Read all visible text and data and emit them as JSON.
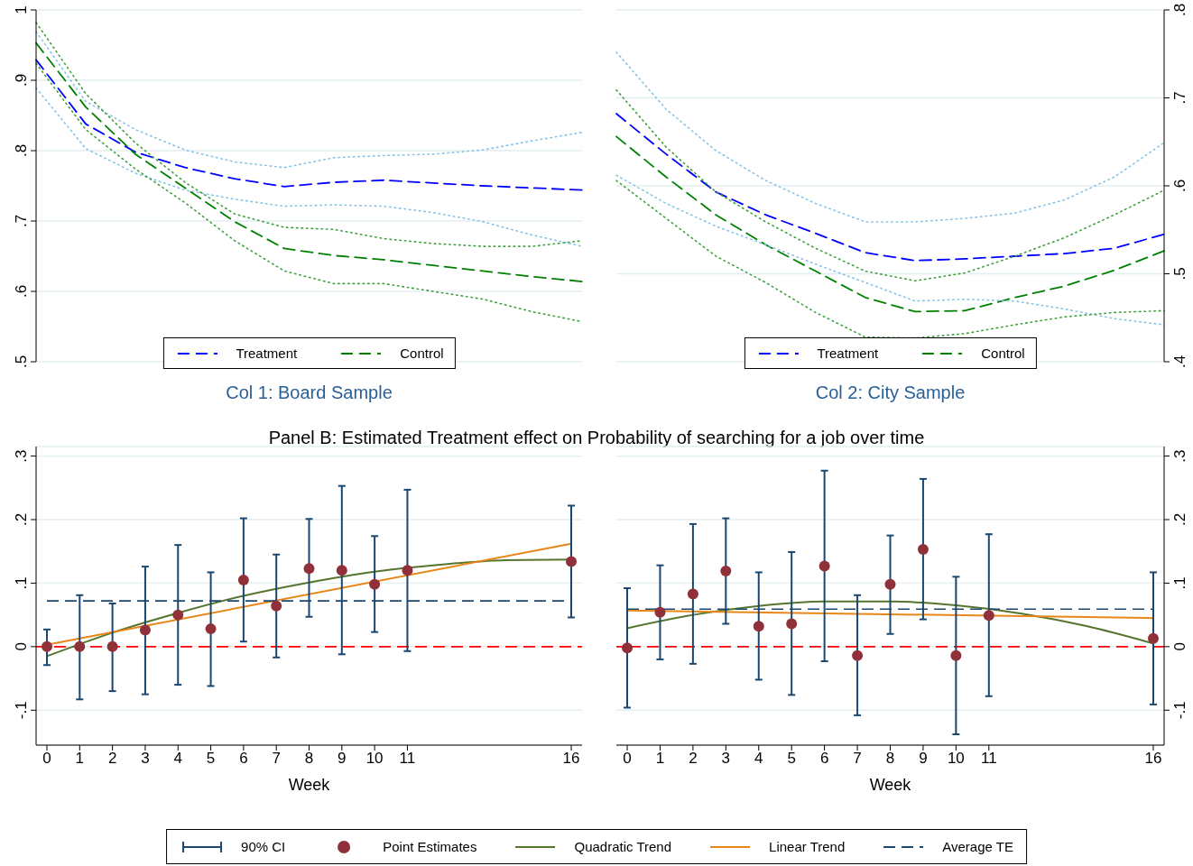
{
  "chart_data": [
    {
      "type": "line",
      "title": "Col 1: Board Sample",
      "categories": [
        null,
        null,
        null,
        null,
        null,
        null,
        null,
        null,
        null,
        null,
        null,
        null
      ],
      "ylim": [
        0.5,
        1
      ],
      "yticks": [
        {
          "value": 0.5,
          "label": ".5"
        },
        {
          "value": 0.6,
          "label": ".6"
        },
        {
          "value": 0.7,
          "label": ".7"
        },
        {
          "value": 0.8,
          "label": ".8"
        },
        {
          "value": 0.9,
          "label": ".9"
        },
        1
      ],
      "grid": "y",
      "legend": "bottom",
      "series": [
        {
          "name": "Treatment",
          "color": "#0000ff",
          "line_style": "dashed",
          "values": [
            0.929,
            0.838,
            0.798,
            0.776,
            0.76,
            0.749,
            0.755,
            0.758,
            0.754,
            0.75,
            0.747,
            0.744
          ]
        },
        {
          "name": "Control",
          "color": "#008000",
          "line_style": "dashed",
          "values": [
            0.953,
            0.862,
            0.795,
            0.747,
            0.699,
            0.661,
            0.651,
            0.645,
            0.637,
            0.629,
            0.621,
            0.614
          ]
        },
        {
          "color": "#87c3e6",
          "line_style": "dotted",
          "values": [
            0.889,
            0.803,
            0.768,
            0.744,
            0.731,
            0.721,
            0.723,
            0.721,
            0.712,
            0.699,
            0.68,
            0.664
          ]
        },
        {
          "color": "#87c3e6",
          "line_style": "dotted",
          "values": [
            0.969,
            0.87,
            0.83,
            0.801,
            0.784,
            0.776,
            0.79,
            0.793,
            0.795,
            0.801,
            0.814,
            0.826
          ]
        },
        {
          "color": "#3fa03f",
          "line_style": "dotted",
          "values": [
            0.924,
            0.83,
            0.774,
            0.726,
            0.672,
            0.629,
            0.611,
            0.611,
            0.6,
            0.589,
            0.571,
            0.557
          ]
        },
        {
          "color": "#3fa03f",
          "line_style": "dotted",
          "values": [
            0.982,
            0.881,
            0.811,
            0.755,
            0.71,
            0.691,
            0.688,
            0.675,
            0.668,
            0.664,
            0.664,
            0.672
          ]
        }
      ]
    },
    {
      "type": "line",
      "title": "Col 2: City Sample",
      "categories": [
        null,
        null,
        null,
        null,
        null,
        null,
        null,
        null,
        null,
        null,
        null,
        null
      ],
      "ylim": [
        0.4,
        0.8
      ],
      "yticks": [
        {
          "value": 0.4,
          "label": ".4"
        },
        {
          "value": 0.5,
          "label": ".5"
        },
        {
          "value": 0.6,
          "label": ".6"
        },
        {
          "value": 0.7,
          "label": ".7"
        },
        {
          "value": 0.8,
          "label": ".8"
        }
      ],
      "grid": "y",
      "legend": "bottom",
      "series": [
        {
          "name": "Treatment",
          "color": "#0000ff",
          "line_style": "dashed",
          "values": [
            0.682,
            0.636,
            0.593,
            0.567,
            0.546,
            0.524,
            0.515,
            0.517,
            0.52,
            0.523,
            0.529,
            0.545
          ]
        },
        {
          "name": "Control",
          "color": "#008000",
          "line_style": "dashed",
          "values": [
            0.656,
            0.61,
            0.567,
            0.533,
            0.503,
            0.473,
            0.457,
            0.458,
            0.473,
            0.486,
            0.504,
            0.526
          ]
        },
        {
          "color": "#87c3e6",
          "line_style": "dotted",
          "values": [
            0.612,
            0.58,
            0.554,
            0.533,
            0.511,
            0.49,
            0.469,
            0.471,
            0.469,
            0.46,
            0.449,
            0.442
          ]
        },
        {
          "color": "#87c3e6",
          "line_style": "dotted",
          "values": [
            0.752,
            0.687,
            0.64,
            0.606,
            0.58,
            0.559,
            0.559,
            0.563,
            0.569,
            0.584,
            0.61,
            0.649
          ]
        },
        {
          "color": "#3fa03f",
          "line_style": "dotted",
          "values": [
            0.606,
            0.563,
            0.52,
            0.49,
            0.456,
            0.428,
            0.427,
            0.432,
            0.442,
            0.451,
            0.456,
            0.458
          ]
        },
        {
          "color": "#3fa03f",
          "line_style": "dotted",
          "values": [
            0.709,
            0.644,
            0.593,
            0.559,
            0.529,
            0.503,
            0.492,
            0.501,
            0.52,
            0.541,
            0.567,
            0.595
          ]
        }
      ]
    },
    {
      "type": "scatter",
      "title": "Panel B: Estimated Treatment effect on Probability of searching for a job over time",
      "xlabel": "Week",
      "xlim": [
        -0.33,
        16.33
      ],
      "xticks": [
        0,
        1,
        2,
        3,
        4,
        5,
        6,
        7,
        8,
        9,
        10,
        11,
        16
      ],
      "ylim": [
        -0.155,
        0.315
      ],
      "yticks": [
        {
          "value": -0.1,
          "label": "-.1"
        },
        0,
        {
          "value": 0.1,
          "label": ".1"
        },
        {
          "value": 0.2,
          "label": ".2"
        },
        {
          "value": 0.3,
          "label": ".3"
        }
      ],
      "grid": "y",
      "legend": "bottom",
      "ref_lines": [
        {
          "axis": "y",
          "value": 0,
          "color": "#ff0000",
          "line_style": "dashed"
        }
      ],
      "annotations": [
        "90% CI"
      ],
      "series": [
        {
          "name": "Point Estimates",
          "type": "scatter",
          "marker": "circle",
          "color": "#903039",
          "x": [
            0,
            1,
            2,
            3,
            4,
            5,
            6,
            7,
            8,
            9,
            10,
            11,
            16
          ],
          "values": [
            0,
            0,
            0,
            0.026,
            0.05,
            0.028,
            0.105,
            0.064,
            0.123,
            0.12,
            0.098,
            0.12,
            0.134
          ],
          "errors": [
            [
              -0.029,
              0.027
            ],
            [
              -0.083,
              0.081
            ],
            [
              -0.07,
              0.068
            ],
            [
              -0.075,
              0.126
            ],
            [
              -0.06,
              0.16
            ],
            [
              -0.062,
              0.117
            ],
            [
              0.008,
              0.202
            ],
            [
              -0.017,
              0.145
            ],
            [
              0.047,
              0.201
            ],
            [
              -0.012,
              0.253
            ],
            [
              0.023,
              0.174
            ],
            [
              -0.007,
              0.247
            ],
            [
              0.046,
              0.222
            ]
          ]
        },
        {
          "name": "Quadratic Trend",
          "type": "line",
          "color": "#55752f",
          "x": [
            0,
            2,
            4,
            6,
            8,
            10,
            12,
            14,
            16
          ],
          "values": [
            -0.015,
            0.022,
            0.053,
            0.08,
            0.101,
            0.118,
            0.129,
            0.136,
            0.137
          ]
        },
        {
          "name": "Linear Trend",
          "type": "line",
          "color": "#e8861a",
          "x": [
            0,
            16
          ],
          "values": [
            0.003,
            0.162
          ]
        },
        {
          "name": "Average TE",
          "type": "line",
          "line_style": "dashed",
          "color": "#1a476f",
          "x": [
            0,
            16
          ],
          "values": [
            0.072,
            0.072
          ]
        }
      ]
    },
    {
      "type": "scatter",
      "xlabel": "Week",
      "xlim": [
        -0.33,
        16.33
      ],
      "xticks": [
        0,
        1,
        2,
        3,
        4,
        5,
        6,
        7,
        8,
        9,
        10,
        11,
        16
      ],
      "y2lim": [
        -0.155,
        0.315
      ],
      "y2ticks": [
        {
          "value": -0.1,
          "label": "-.1"
        },
        0,
        {
          "value": 0.1,
          "label": ".1"
        },
        {
          "value": 0.2,
          "label": ".2"
        },
        {
          "value": 0.3,
          "label": ".3"
        }
      ],
      "grid": "y",
      "ref_lines": [
        {
          "axis": "y2",
          "value": 0,
          "color": "#ff0000",
          "line_style": "dashed"
        }
      ],
      "series": [
        {
          "type": "scatter",
          "marker": "circle",
          "axis": "y2",
          "color": "#903039",
          "x": [
            0,
            1,
            2,
            3,
            4,
            5,
            6,
            7,
            8,
            9,
            10,
            11,
            16
          ],
          "values": [
            -0.002,
            0.054,
            0.083,
            0.119,
            0.032,
            0.036,
            0.127,
            -0.014,
            0.098,
            0.153,
            -0.014,
            0.049,
            0.013
          ],
          "errors": [
            [
              -0.096,
              0.092
            ],
            [
              -0.02,
              0.128
            ],
            [
              -0.027,
              0.193
            ],
            [
              0.036,
              0.202
            ],
            [
              -0.052,
              0.117
            ],
            [
              -0.076,
              0.149
            ],
            [
              -0.023,
              0.277
            ],
            [
              -0.108,
              0.081
            ],
            [
              0.02,
              0.175
            ],
            [
              0.043,
              0.264
            ],
            [
              -0.138,
              0.11
            ],
            [
              -0.078,
              0.177
            ],
            [
              -0.091,
              0.117
            ]
          ]
        },
        {
          "type": "line",
          "axis": "y2",
          "color": "#55752f",
          "x": [
            0,
            2,
            4,
            6,
            8,
            10,
            12,
            14,
            16
          ],
          "values": [
            0.029,
            0.05,
            0.064,
            0.071,
            0.071,
            0.065,
            0.052,
            0.032,
            0.005
          ]
        },
        {
          "type": "line",
          "axis": "y2",
          "color": "#e8861a",
          "x": [
            0,
            16
          ],
          "values": [
            0.057,
            0.045
          ]
        },
        {
          "type": "line",
          "axis": "y2",
          "line_style": "dashed",
          "color": "#1a476f",
          "x": [
            0,
            16
          ],
          "values": [
            0.059,
            0.059
          ]
        }
      ]
    }
  ]
}
